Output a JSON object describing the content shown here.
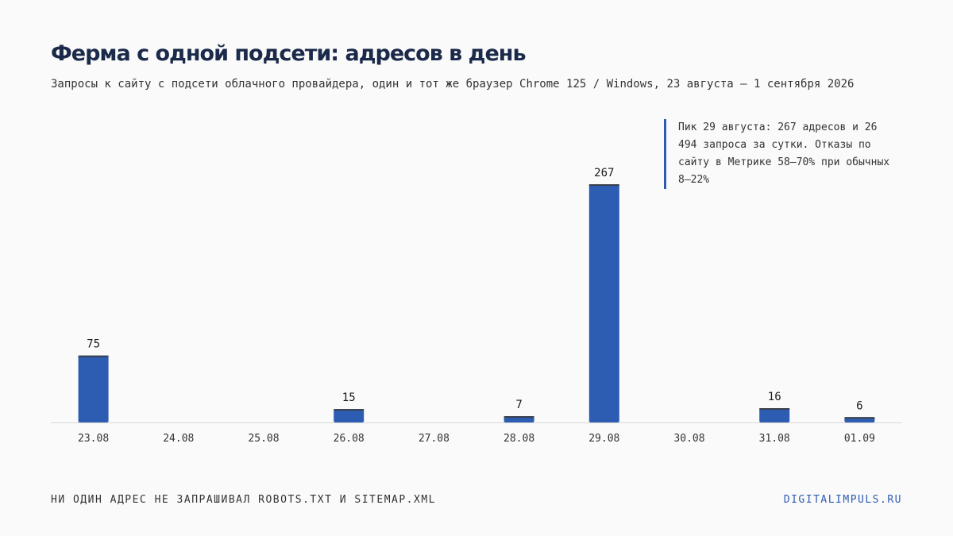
{
  "header": {
    "title": "Ферма с одной подсети: адресов в день",
    "subtitle": "Запросы к сайту с подсети облачного провайдера, один и тот же браузер Chrome 125 / Windows, 23 августа — 1 сентября 2026"
  },
  "annotation": {
    "text": "Пик 29 августа: 267 адресов и 26 494 запроса за сутки. Отказы по сайту в Метрике 58–70% при обычных 8–22%"
  },
  "footer": {
    "note": "НИ ОДИН АДРЕС НЕ ЗАПРАШИВАЛ ROBOTS.TXT И SITEMAP.XML",
    "source": "DIGITALIMPULS.RU"
  },
  "colors": {
    "bar": "#2d5db2",
    "bar_top": "#3a3f4a",
    "axis": "#d6d6d6",
    "title": "#1b2a4a"
  },
  "chart_data": {
    "type": "bar",
    "title": "Ферма с одной подсети: адресов в день",
    "categories": [
      "23.08",
      "24.08",
      "25.08",
      "26.08",
      "27.08",
      "28.08",
      "29.08",
      "30.08",
      "31.08",
      "01.09"
    ],
    "values": [
      75,
      null,
      null,
      15,
      null,
      7,
      267,
      null,
      16,
      6
    ],
    "data_labels": [
      "75",
      "",
      "",
      "15",
      "",
      "7",
      "267",
      "",
      "16",
      "6"
    ],
    "xlabel": "",
    "ylabel": "",
    "ylim": [
      0,
      267
    ],
    "grid": false,
    "legend": "none"
  }
}
